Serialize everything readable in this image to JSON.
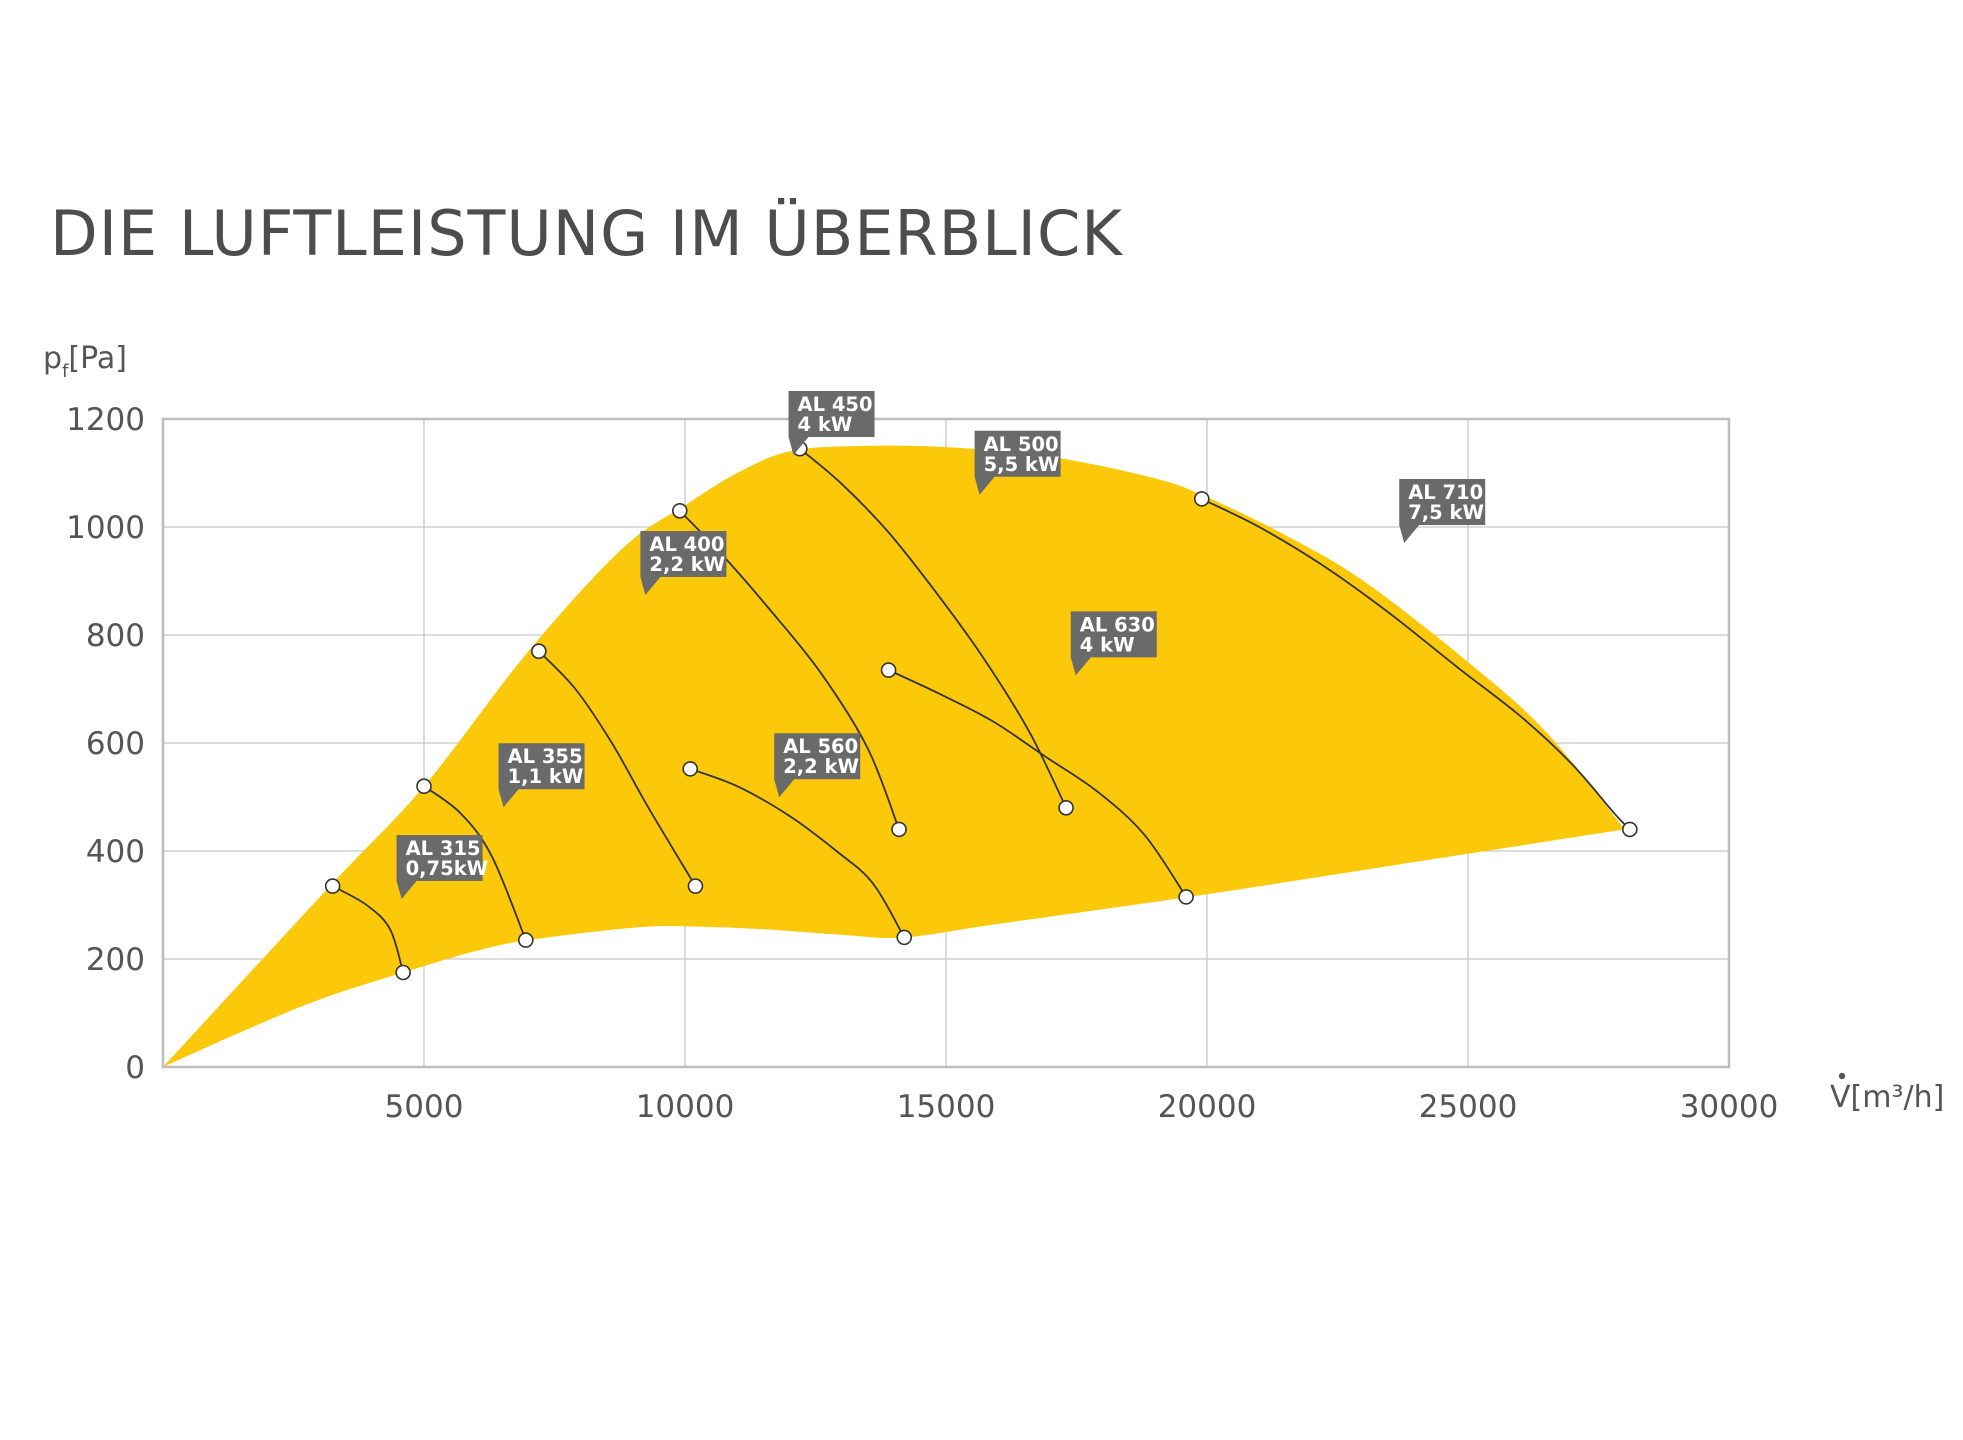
{
  "title": "DIE LUFTLEISTUNG IM ÜBERBLICK",
  "colors": {
    "area_fill": "#FCC80A",
    "grid": "#c8c8c8",
    "frame": "#bdbdbd",
    "curve": "#333333",
    "label_bg": "#6a6a6a",
    "label_text": "#ffffff",
    "text": "#555555"
  },
  "chart_data": {
    "type": "area",
    "ylabel": {
      "main": "p",
      "sub": "f",
      "unit": "[Pa]"
    },
    "xlabel": {
      "main": "V",
      "unit": "[m³/h]"
    },
    "xlim": [
      0,
      30000
    ],
    "ylim": [
      0,
      1200
    ],
    "x_ticks": [
      5000,
      10000,
      15000,
      20000,
      25000,
      30000
    ],
    "y_ticks": [
      0,
      200,
      400,
      600,
      800,
      1000,
      1200
    ],
    "x_tick_labels": [
      "5000",
      "10000",
      "15000",
      "20000",
      "25000",
      "30000"
    ],
    "y_tick_labels": [
      "0",
      "200",
      "400",
      "600",
      "800",
      "1000",
      "1200"
    ],
    "grid": true,
    "envelope": {
      "upper": [
        [
          0,
          0
        ],
        [
          3200,
          335
        ],
        [
          5000,
          520
        ],
        [
          7000,
          770
        ],
        [
          8800,
          960
        ],
        [
          10000,
          1040
        ],
        [
          11000,
          1100
        ],
        [
          12000,
          1140
        ],
        [
          13300,
          1150
        ],
        [
          15000,
          1148
        ],
        [
          17000,
          1130
        ],
        [
          19000,
          1090
        ],
        [
          20000,
          1055
        ],
        [
          21500,
          985
        ],
        [
          23000,
          900
        ],
        [
          25000,
          750
        ],
        [
          26500,
          620
        ],
        [
          28000,
          440
        ]
      ],
      "lower": [
        [
          28000,
          440
        ],
        [
          24000,
          380
        ],
        [
          20000,
          320
        ],
        [
          16000,
          265
        ],
        [
          14200,
          240
        ],
        [
          13000,
          245
        ],
        [
          11500,
          255
        ],
        [
          10200,
          260
        ],
        [
          9000,
          258
        ],
        [
          7000,
          235
        ],
        [
          6000,
          215
        ],
        [
          4600,
          175
        ],
        [
          3000,
          125
        ],
        [
          1500,
          65
        ],
        [
          0,
          0
        ]
      ]
    },
    "series": [
      {
        "name": "AL 315",
        "power": "0,75kW",
        "points": [
          [
            3250,
            335
          ],
          [
            3900,
            300
          ],
          [
            4350,
            255
          ],
          [
            4600,
            175
          ]
        ]
      },
      {
        "name": "AL 355",
        "power": "1,1 kW",
        "points": [
          [
            5000,
            520
          ],
          [
            5700,
            470
          ],
          [
            6300,
            390
          ],
          [
            6950,
            235
          ]
        ]
      },
      {
        "name": "AL 400",
        "power": "2,2 kW",
        "points": [
          [
            7200,
            770
          ],
          [
            7900,
            700
          ],
          [
            8600,
            600
          ],
          [
            9300,
            480
          ],
          [
            10200,
            335
          ]
        ]
      },
      {
        "name": "AL 450",
        "power": "4 kW",
        "points": [
          [
            9900,
            1030
          ],
          [
            10700,
            950
          ],
          [
            11600,
            850
          ],
          [
            12600,
            730
          ],
          [
            13500,
            590
          ],
          [
            14100,
            440
          ]
        ]
      },
      {
        "name": "AL 500",
        "power": "5,5 kW",
        "points": [
          [
            12200,
            1145
          ],
          [
            13000,
            1080
          ],
          [
            13900,
            990
          ],
          [
            14800,
            880
          ],
          [
            15700,
            760
          ],
          [
            16600,
            620
          ],
          [
            17300,
            480
          ]
        ]
      },
      {
        "name": "AL 560",
        "power": "2,2 kW",
        "points": [
          [
            10100,
            552
          ],
          [
            11000,
            520
          ],
          [
            12000,
            465
          ],
          [
            12900,
            400
          ],
          [
            13600,
            340
          ],
          [
            14200,
            240
          ]
        ]
      },
      {
        "name": "AL 630",
        "power": "4 kW",
        "points": [
          [
            13900,
            735
          ],
          [
            14900,
            690
          ],
          [
            15900,
            640
          ],
          [
            16900,
            575
          ],
          [
            17900,
            510
          ],
          [
            18800,
            430
          ],
          [
            19600,
            315
          ]
        ]
      },
      {
        "name": "AL 710",
        "power": "7,5 kW",
        "points": [
          [
            19900,
            1052
          ],
          [
            21000,
            1000
          ],
          [
            22200,
            930
          ],
          [
            23500,
            840
          ],
          [
            24800,
            740
          ],
          [
            26000,
            650
          ],
          [
            27000,
            560
          ],
          [
            27800,
            470
          ],
          [
            28100,
            440
          ]
        ]
      }
    ]
  }
}
